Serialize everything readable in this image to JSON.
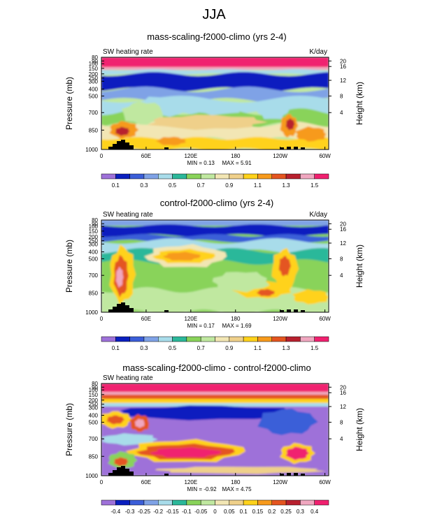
{
  "figure": {
    "title": "JJA"
  },
  "axis_labels": {
    "left": "Pressure (mb)",
    "right": "Height (km)",
    "pressure_ticks": [
      "80",
      "90",
      "100",
      "150",
      "200",
      "250",
      "300",
      "400",
      "500",
      "700",
      "850",
      "1000"
    ],
    "height_ticks": [
      "20",
      "16",
      "12",
      "8",
      "4"
    ],
    "lon_ticks": [
      "0",
      "60E",
      "120E",
      "180",
      "120W",
      "60W"
    ]
  },
  "panels": [
    {
      "title": "mass-scaling-f2000-climo (yrs 2-4)",
      "left_label": "SW heating rate",
      "units": "K/day",
      "min_label": "MIN = 0.13",
      "max_label": "MAX = 5.91",
      "colorbar_labels": [
        "0.1",
        "0.3",
        "0.5",
        "0.7",
        "0.9",
        "1.1",
        "1.3",
        "1.5"
      ],
      "colors": [
        "#9e71d9",
        "#0a1fbf",
        "#3b5ed8",
        "#7fa2e6",
        "#a8dcea",
        "#2bb89a",
        "#89d35a",
        "#c0e8a0",
        "#f2e6b4",
        "#efd08a",
        "#ffd21a",
        "#f79a1c",
        "#e45520",
        "#b8202e",
        "#f0a7c0",
        "#f0206f"
      ]
    },
    {
      "title": "control-f2000-climo (yrs 2-4)",
      "left_label": "SW heating rate",
      "units": "K/day",
      "min_label": "MIN = 0.17",
      "max_label": "MAX = 1.69",
      "colorbar_labels": [
        "0.1",
        "0.3",
        "0.5",
        "0.7",
        "0.9",
        "1.1",
        "1.3",
        "1.5"
      ],
      "colors": [
        "#9e71d9",
        "#0a1fbf",
        "#3b5ed8",
        "#7fa2e6",
        "#a8dcea",
        "#2bb89a",
        "#89d35a",
        "#c0e8a0",
        "#f2e6b4",
        "#efd08a",
        "#ffd21a",
        "#f79a1c",
        "#e45520",
        "#b8202e",
        "#f0a7c0",
        "#f0206f"
      ]
    },
    {
      "title": "mass-scaling-f2000-climo - control-f2000-climo",
      "left_label": "SW heating rate",
      "units": "",
      "min_label": "MIN = -0.92",
      "max_label": "MAX = 4.75",
      "colorbar_labels": [
        "-0.4",
        "-0.3",
        "-0.25",
        "-0.2",
        "-0.15",
        "-0.1",
        "-0.05",
        "0",
        "0.05",
        "0.1",
        "0.15",
        "0.2",
        "0.25",
        "0.3",
        "0.4"
      ],
      "colors": [
        "#9e71d9",
        "#0a1fbf",
        "#3b5ed8",
        "#7fa2e6",
        "#a8dcea",
        "#2bb89a",
        "#89d35a",
        "#c0e8a0",
        "#f2e6b4",
        "#efd08a",
        "#ffd21a",
        "#f79a1c",
        "#e45520",
        "#b8202e",
        "#f0a7c0",
        "#f0206f"
      ]
    }
  ],
  "chart_data": [
    {
      "type": "heatmap",
      "title": "mass-scaling-f2000-climo (yrs 2-4)",
      "xlabel": "",
      "ylabel": "Pressure (mb)",
      "y2label": "Height (km)",
      "x_ticks": [
        "0",
        "60E",
        "120E",
        "180",
        "120W",
        "60W"
      ],
      "y_ticks": [
        "80",
        "90",
        "100",
        "150",
        "200",
        "250",
        "300",
        "400",
        "500",
        "700",
        "850",
        "1000"
      ],
      "min": 0.13,
      "max": 5.91,
      "levels": [
        0.1,
        0.2,
        0.3,
        0.4,
        0.5,
        0.6,
        0.7,
        0.8,
        0.9,
        1.0,
        1.1,
        1.2,
        1.3,
        1.4,
        1.5
      ],
      "units": "K/day"
    },
    {
      "type": "heatmap",
      "title": "control-f2000-climo (yrs 2-4)",
      "xlabel": "",
      "ylabel": "Pressure (mb)",
      "y2label": "Height (km)",
      "x_ticks": [
        "0",
        "60E",
        "120E",
        "180",
        "120W",
        "60W"
      ],
      "y_ticks": [
        "80",
        "90",
        "100",
        "150",
        "200",
        "250",
        "300",
        "400",
        "500",
        "700",
        "850",
        "1000"
      ],
      "min": 0.17,
      "max": 1.69,
      "levels": [
        0.1,
        0.2,
        0.3,
        0.4,
        0.5,
        0.6,
        0.7,
        0.8,
        0.9,
        1.0,
        1.1,
        1.2,
        1.3,
        1.4,
        1.5
      ],
      "units": "K/day"
    },
    {
      "type": "heatmap",
      "title": "mass-scaling-f2000-climo - control-f2000-climo",
      "xlabel": "",
      "ylabel": "Pressure (mb)",
      "y2label": "Height (km)",
      "x_ticks": [
        "0",
        "60E",
        "120E",
        "180",
        "120W",
        "60W"
      ],
      "y_ticks": [
        "80",
        "90",
        "100",
        "150",
        "200",
        "250",
        "300",
        "400",
        "500",
        "700",
        "850",
        "1000"
      ],
      "min": -0.92,
      "max": 4.75,
      "levels": [
        -0.4,
        -0.3,
        -0.25,
        -0.2,
        -0.15,
        -0.1,
        -0.05,
        0,
        0.05,
        0.1,
        0.15,
        0.2,
        0.25,
        0.3,
        0.4
      ]
    }
  ]
}
